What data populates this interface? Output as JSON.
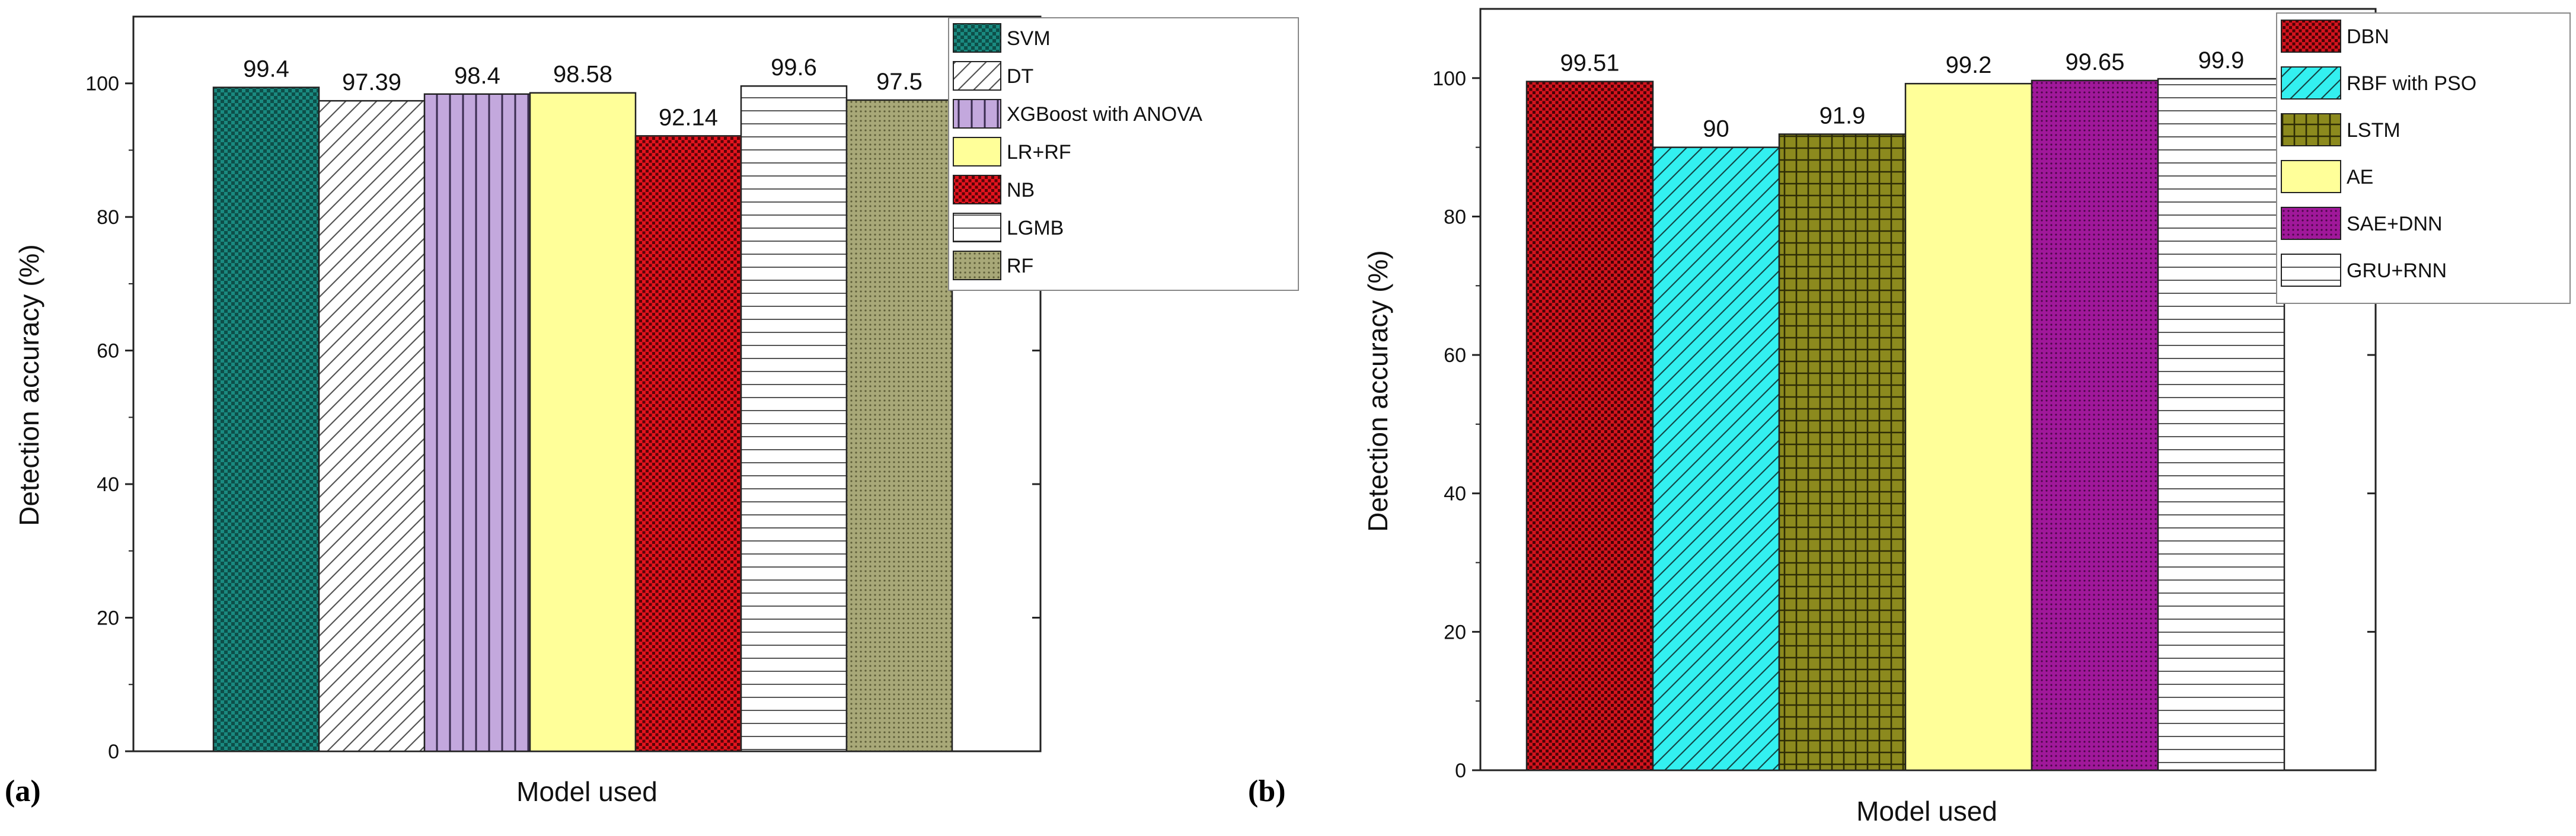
{
  "chart_data": [
    {
      "type": "bar",
      "panel_label": "(a)",
      "xlabel": "Model used",
      "ylabel": "Detection accuracy (%)",
      "ylim": [
        0,
        110
      ],
      "yticks": [
        0,
        20,
        40,
        60,
        80,
        100
      ],
      "legend_position": "top-right",
      "series": [
        {
          "name": "SVM",
          "value": 99.4,
          "label": "99.4",
          "color": "#1a8a80",
          "pattern": "checker"
        },
        {
          "name": "DT",
          "value": 97.39,
          "label": "97.39",
          "color": "#ffffff",
          "pattern": "diagonal"
        },
        {
          "name": "XGBoost with ANOVA",
          "value": 98.4,
          "label": "98.4",
          "color": "#c3a8dd",
          "pattern": "vertical"
        },
        {
          "name": "LR+RF",
          "value": 98.58,
          "label": "98.58",
          "color": "#ffff99",
          "pattern": "none"
        },
        {
          "name": "NB",
          "value": 92.14,
          "label": "92.14",
          "color": "#e3141e",
          "pattern": "dots"
        },
        {
          "name": "LGMB",
          "value": 99.6,
          "label": "99.6",
          "color": "#ffffff",
          "pattern": "horizontal"
        },
        {
          "name": "RF",
          "value": 97.5,
          "label": "97.5",
          "color": "#a8a878",
          "pattern": "fine-dots"
        }
      ]
    },
    {
      "type": "bar",
      "panel_label": "(b)",
      "xlabel": "Model used",
      "ylabel": "Detection accuracy (%)",
      "ylim": [
        0,
        110
      ],
      "yticks": [
        0,
        20,
        40,
        60,
        80,
        100
      ],
      "legend_position": "top-right",
      "series": [
        {
          "name": "DBN",
          "value": 99.51,
          "label": "99.51",
          "color": "#d4141e",
          "pattern": "dots"
        },
        {
          "name": "RBF with PSO",
          "value": 90,
          "label": "90",
          "color": "#33f0f0",
          "pattern": "diagonal"
        },
        {
          "name": "LSTM",
          "value": 91.9,
          "label": "91.9",
          "color": "#8c8a1e",
          "pattern": "grid"
        },
        {
          "name": "AE",
          "value": 99.2,
          "label": "99.2",
          "color": "#ffff99",
          "pattern": "none"
        },
        {
          "name": "SAE+DNN",
          "value": 99.65,
          "label": "99.65",
          "color": "#a0189a",
          "pattern": "fine-dots"
        },
        {
          "name": "GRU+RNN",
          "value": 99.9,
          "label": "99.9",
          "color": "#ffffff",
          "pattern": "horizontal"
        }
      ]
    }
  ]
}
